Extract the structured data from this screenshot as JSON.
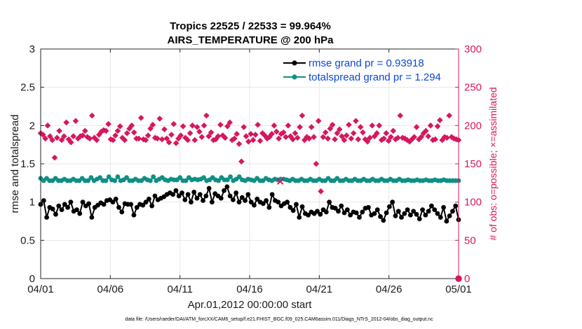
{
  "chart_data": {
    "type": "line",
    "title_line1": "Tropics 22525 / 22533 = 99.964%",
    "title_line2": "AIRS_TEMPERATURE @ 200 hPa",
    "xlabel": "Apr.01,2012 00:00:00 start",
    "ylabel_left": "rmse and totalspread",
    "ylabel_right": "# of obs: o=possible; ×=assimilated",
    "x_ticks": [
      "04/01",
      "04/06",
      "04/11",
      "04/16",
      "04/21",
      "04/26",
      "05/01"
    ],
    "x_range_days": [
      0,
      30
    ],
    "ylim_left": [
      0,
      3
    ],
    "y_ticks_left": [
      "0",
      "0.5",
      "1",
      "1.5",
      "2",
      "2.5",
      "3"
    ],
    "ylim_right": [
      0,
      300
    ],
    "y_ticks_right": [
      "0",
      "50",
      "100",
      "150",
      "200",
      "250",
      "300"
    ],
    "legend_position": "top-right",
    "series": [
      {
        "name": "rmse grand pr = 0.93918",
        "axis": "left",
        "color": "#000000",
        "marker": "circle",
        "values": [
          0.97,
          1.02,
          0.8,
          0.93,
          0.91,
          0.84,
          0.95,
          0.9,
          0.97,
          0.93,
          1.0,
          0.88,
          0.9,
          0.85,
          1.0,
          0.95,
          0.98,
          0.8,
          0.93,
          0.96,
          0.99,
          0.97,
          1.02,
          1.03,
          1.0,
          1.04,
          0.93,
          0.87,
          0.98,
          0.97,
          0.97,
          0.83,
          0.93,
          0.97,
          0.96,
          1.0,
          1.04,
          0.95,
          1.08,
          1.03,
          1.05,
          1.07,
          1.1,
          1.12,
          1.1,
          1.15,
          1.08,
          1.12,
          1.03,
          1.1,
          1.0,
          1.13,
          1.05,
          1.1,
          1.02,
          1.08,
          1.18,
          1.0,
          1.11,
          1.08,
          1.05,
          1.15,
          1.2,
          1.08,
          1.03,
          1.12,
          1.0,
          1.06,
          1.02,
          1.1,
          1.0,
          0.96,
          1.04,
          1.0,
          0.98,
          1.02,
          0.93,
          1.1,
          1.02,
          1.0,
          0.95,
          0.98,
          1.0,
          0.93,
          0.89,
          0.97,
          0.8,
          0.94,
          0.85,
          0.83,
          0.87,
          0.85,
          0.88,
          0.84,
          0.9,
          0.87,
          1.0,
          0.93,
          0.92,
          0.88,
          0.95,
          0.86,
          0.9,
          0.83,
          0.87,
          0.86,
          0.8,
          0.87,
          0.92,
          0.93,
          0.83,
          0.85,
          0.9,
          0.81,
          0.76,
          0.86,
          0.94,
          1.0,
          0.82,
          0.88,
          0.8,
          0.85,
          0.9,
          0.83,
          0.88,
          0.84,
          0.78,
          0.9,
          0.83,
          0.88,
          0.95,
          0.9,
          0.85,
          0.8,
          0.93,
          0.75,
          0.82,
          0.88,
          0.95,
          0.77
        ]
      },
      {
        "name": "totalspread grand pr = 1.294",
        "axis": "left",
        "color": "#0f8f86",
        "marker": "circle",
        "values": [
          1.31,
          1.28,
          1.31,
          1.28,
          1.28,
          1.31,
          1.28,
          1.28,
          1.3,
          1.28,
          1.28,
          1.3,
          1.28,
          1.28,
          1.31,
          1.28,
          1.28,
          1.32,
          1.28,
          1.3,
          1.32,
          1.28,
          1.28,
          1.33,
          1.29,
          1.28,
          1.33,
          1.28,
          1.29,
          1.32,
          1.28,
          1.28,
          1.3,
          1.28,
          1.28,
          1.31,
          1.29,
          1.28,
          1.33,
          1.28,
          1.3,
          1.32,
          1.29,
          1.28,
          1.3,
          1.29,
          1.29,
          1.32,
          1.28,
          1.28,
          1.32,
          1.29,
          1.3,
          1.29,
          1.3,
          1.32,
          1.28,
          1.29,
          1.32,
          1.29,
          1.28,
          1.32,
          1.29,
          1.29,
          1.33,
          1.28,
          1.3,
          1.33,
          1.29,
          1.28,
          1.3,
          1.29,
          1.28,
          1.31,
          1.28,
          1.28,
          1.31,
          1.29,
          1.28,
          1.3,
          1.29,
          1.3,
          1.3,
          1.29,
          1.28,
          1.3,
          1.28,
          1.28,
          1.3,
          1.28,
          1.28,
          1.3,
          1.28,
          1.28,
          1.3,
          1.28,
          1.28,
          1.31,
          1.28,
          1.28,
          1.31,
          1.28,
          1.28,
          1.3,
          1.28,
          1.28,
          1.3,
          1.28,
          1.28,
          1.3,
          1.28,
          1.28,
          1.3,
          1.28,
          1.28,
          1.3,
          1.28,
          1.28,
          1.3,
          1.28,
          1.28,
          1.3,
          1.28,
          1.28,
          1.29,
          1.28,
          1.28,
          1.29,
          1.28,
          1.28,
          1.29,
          1.28,
          1.28,
          1.29,
          1.28,
          1.28,
          1.29,
          1.28,
          1.28,
          1.28,
          1.28,
          1.28
        ]
      },
      {
        "name": "obs assimilated",
        "axis": "right",
        "color": "#d6175f",
        "marker": "diamond",
        "values": [
          190,
          188,
          183,
          200,
          186,
          181,
          158,
          184,
          193,
          181,
          186,
          204,
          182,
          178,
          186,
          206,
          183,
          186,
          187,
          193,
          185,
          183,
          213,
          184,
          181,
          188,
          192,
          194,
          193,
          202,
          182,
          181,
          187,
          193,
          199,
          184,
          181,
          190,
          196,
          200,
          191,
          183,
          183,
          210,
          182,
          181,
          187,
          196,
          201,
          184,
          183,
          209,
          182,
          195,
          183,
          178,
          188,
          202,
          177,
          183,
          187,
          199,
          184,
          181,
          190,
          200,
          181,
          198,
          192,
          185,
          200,
          213,
          186,
          191,
          181,
          182,
          186,
          201,
          187,
          184,
          199,
          204,
          181,
          183,
          189,
          176,
          153,
          198,
          186,
          179,
          189,
          181,
          188,
          201,
          180,
          190,
          187,
          183,
          185,
          189,
          200,
          192,
          183,
          189,
          191,
          185,
          200,
          186,
          182,
          190,
          184,
          198,
          213,
          181,
          185,
          183,
          198,
          185,
          150,
          206,
          114,
          185,
          191,
          183,
          196,
          201,
          182,
          190,
          195,
          186,
          181,
          187,
          201,
          183,
          190,
          206,
          182,
          198,
          191,
          182,
          179,
          184,
          200,
          186,
          190,
          200,
          181,
          183,
          190,
          180,
          185,
          193,
          182,
          184,
          213,
          184,
          183,
          181,
          179,
          182,
          185,
          198,
          182,
          185,
          190,
          193,
          186,
          200,
          181,
          182,
          199,
          207,
          181,
          185,
          184,
          213,
          185,
          183,
          182,
          181
        ]
      },
      {
        "name": "obs possible",
        "axis": "right",
        "color": "#d6175f",
        "marker": "circle-outline",
        "x_days": [
          30
        ],
        "values": [
          0
        ]
      }
    ],
    "extra_marks": [
      {
        "x_day": 17.2,
        "value": 127
      }
    ]
  },
  "footer": {
    "data_file": "data file: /Users/raeder/DAI/ATM_forcXX/CAM6_setup/f.e21.FHIST_BGC.f09_025.CAM6assim.011/Diags_NTrS_2012-04/obs_diag_output.nc"
  }
}
